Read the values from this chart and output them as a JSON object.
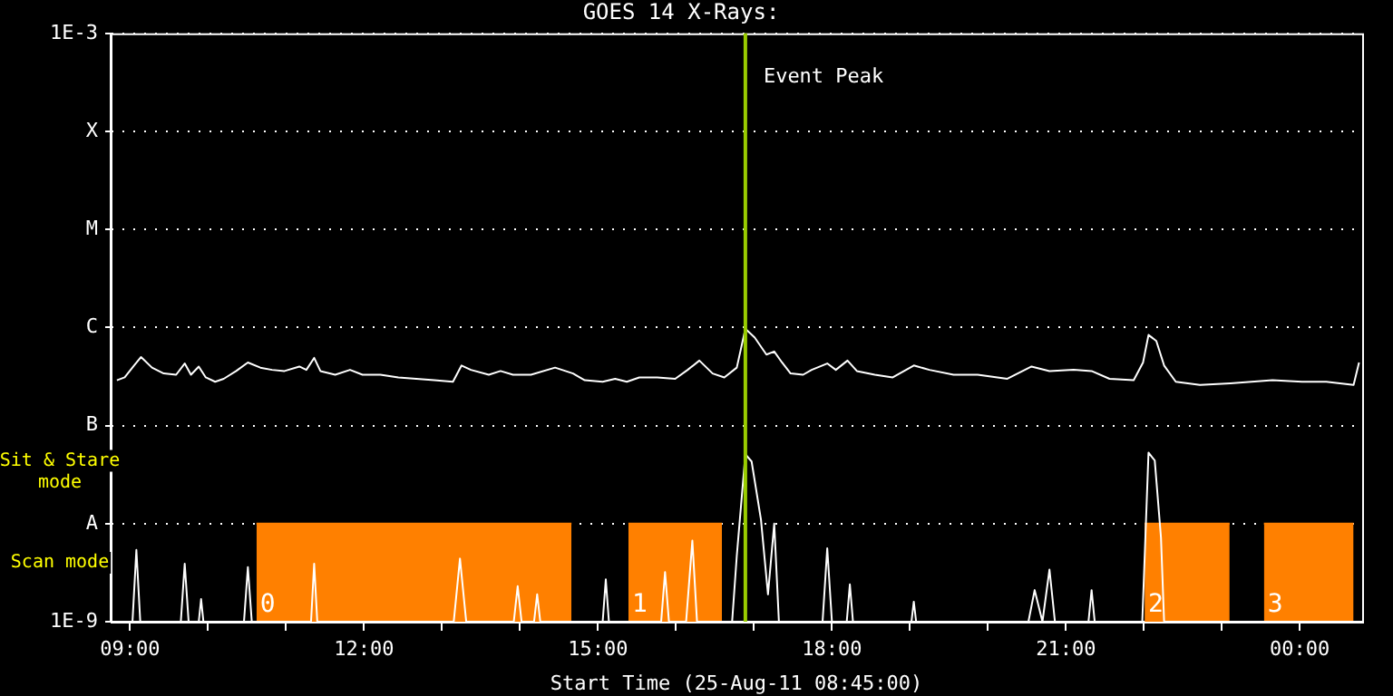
{
  "chart_data": {
    "type": "line",
    "title": "GOES 14 X-Rays:",
    "xlabel": "Start Time (25-Aug-11 08:45:00)",
    "log": "y",
    "grid": "y",
    "legend": false,
    "marker": "none",
    "xlim": [
      8.75,
      24.8
    ],
    "xticks": [
      {
        "value": 9,
        "label": "09:00"
      },
      {
        "value": 10,
        "label": null
      },
      {
        "value": 11,
        "label": null
      },
      {
        "value": 12,
        "label": "12:00"
      },
      {
        "value": 13,
        "label": null
      },
      {
        "value": 14,
        "label": null
      },
      {
        "value": 15,
        "label": "15:00"
      },
      {
        "value": 16,
        "label": null
      },
      {
        "value": 17,
        "label": null
      },
      {
        "value": 18,
        "label": "18:00"
      },
      {
        "value": 19,
        "label": null
      },
      {
        "value": 20,
        "label": null
      },
      {
        "value": 21,
        "label": "21:00"
      },
      {
        "value": 22,
        "label": null
      },
      {
        "value": 23,
        "label": null
      },
      {
        "value": 24,
        "label": "00:00"
      }
    ],
    "ylim": [
      1e-09,
      0.001
    ],
    "yticks": [
      {
        "value": 1e-09,
        "label": "1E-9"
      },
      {
        "value": 1e-08,
        "label": "A"
      },
      {
        "value": 1e-07,
        "label": "B"
      },
      {
        "value": 1e-06,
        "label": "C"
      },
      {
        "value": 1e-05,
        "label": "M"
      },
      {
        "value": 0.0001,
        "label": "X"
      },
      {
        "value": 0.001,
        "label": "1E-3"
      }
    ],
    "series": [
      {
        "type": "area",
        "color": "#ff8000",
        "x": [
          10.62,
          14.66,
          15.0,
          15.39,
          16.59,
          19.0,
          22.01,
          23.1,
          23.3,
          23.54,
          24.69
        ],
        "values": [
          1e-08,
          1e-08,
          null,
          1e-08,
          1e-08,
          null,
          1e-08,
          1e-08,
          null,
          1e-08,
          1e-08
        ]
      },
      {
        "color": "#ffffff",
        "x": [
          8.83,
          8.93,
          9.05,
          9.14,
          9.28,
          9.43,
          9.59,
          9.7,
          9.78,
          9.88,
          9.97,
          10.09,
          10.2,
          10.36,
          10.51,
          10.67,
          10.82,
          10.98,
          11.17,
          11.26,
          11.36,
          11.44,
          11.63,
          11.82,
          11.98,
          12.21,
          12.44,
          12.67,
          12.9,
          13.14,
          13.25,
          13.37,
          13.6,
          13.75,
          13.91,
          14.14,
          14.45,
          14.68,
          14.83,
          15.06,
          15.22,
          15.37,
          15.53,
          15.76,
          15.99,
          16.15,
          16.3,
          16.47,
          16.62,
          16.78,
          16.89,
          17.01,
          17.16,
          17.26,
          17.36,
          17.47,
          17.63,
          17.74,
          17.94,
          18.05,
          18.2,
          18.32,
          18.55,
          18.78,
          19.05,
          19.25,
          19.56,
          19.87,
          20.25,
          20.56,
          20.79,
          21.1,
          21.33,
          21.56,
          21.87,
          21.99,
          22.06,
          22.16,
          22.26,
          22.41,
          22.72,
          23.11,
          23.65,
          24.03,
          24.34,
          24.69,
          24.76
        ],
        "values": [
          2.9e-07,
          3.1e-07,
          4.1e-07,
          5e-07,
          3.9e-07,
          3.4e-07,
          3.3e-07,
          4.3e-07,
          3.3e-07,
          4e-07,
          3.1e-07,
          2.8e-07,
          3e-07,
          3.6e-07,
          4.4e-07,
          3.9e-07,
          3.7e-07,
          3.6e-07,
          4e-07,
          3.7e-07,
          4.9e-07,
          3.6e-07,
          3.3e-07,
          3.7e-07,
          3.3e-07,
          3.3e-07,
          3.1e-07,
          3e-07,
          2.9e-07,
          2.8e-07,
          4.1e-07,
          3.7e-07,
          3.3e-07,
          3.6e-07,
          3.3e-07,
          3.3e-07,
          3.9e-07,
          3.4e-07,
          2.9e-07,
          2.8e-07,
          3e-07,
          2.8e-07,
          3.1e-07,
          3.1e-07,
          3e-07,
          3.7e-07,
          4.6e-07,
          3.4e-07,
          3.1e-07,
          3.9e-07,
          9.7e-07,
          7.9e-07,
          5.3e-07,
          5.7e-07,
          4.4e-07,
          3.4e-07,
          3.3e-07,
          3.7e-07,
          4.3e-07,
          3.7e-07,
          4.6e-07,
          3.6e-07,
          3.3e-07,
          3.1e-07,
          4.1e-07,
          3.7e-07,
          3.3e-07,
          3.3e-07,
          3e-07,
          4e-07,
          3.6e-07,
          3.7e-07,
          3.6e-07,
          3e-07,
          2.9e-07,
          4.4e-07,
          8.4e-07,
          7.3e-07,
          4.1e-07,
          2.8e-07,
          2.6e-07,
          2.7e-07,
          2.9e-07,
          2.8e-07,
          2.8e-07,
          2.6e-07,
          4.4e-07
        ]
      },
      {
        "color": "#ffffff",
        "x": [
          8.83,
          9.03,
          9.08,
          9.13,
          9.65,
          9.7,
          9.75,
          9.88,
          9.91,
          9.94,
          10.46,
          10.51,
          10.56,
          11.32,
          11.36,
          11.4,
          13.15,
          13.23,
          13.31,
          13.92,
          13.97,
          14.02,
          14.18,
          14.22,
          14.26,
          15.06,
          15.1,
          15.14,
          15.81,
          15.86,
          15.91,
          16.13,
          16.21,
          16.27,
          16.72,
          16.78,
          16.89,
          16.97,
          17.09,
          17.18,
          17.26,
          17.32,
          17.88,
          17.94,
          18.0,
          18.19,
          18.23,
          18.27,
          19.02,
          19.05,
          19.08,
          20.52,
          20.6,
          20.7,
          20.79,
          20.86,
          21.29,
          21.33,
          21.37,
          21.98,
          22.06,
          22.14,
          22.22,
          22.26,
          24.76
        ],
        "values": [
          1e-09,
          1e-09,
          5.4e-09,
          1e-09,
          1e-09,
          3.9e-09,
          1e-09,
          1e-09,
          1.7e-09,
          1e-09,
          1e-09,
          3.6e-09,
          1e-09,
          1e-09,
          3.9e-09,
          1e-09,
          1e-09,
          4.4e-09,
          1e-09,
          1e-09,
          2.3e-09,
          1e-09,
          1e-09,
          1.9e-09,
          1e-09,
          1e-09,
          2.7e-09,
          1e-09,
          1e-09,
          3.2e-09,
          1e-09,
          1e-09,
          6.7e-09,
          1e-09,
          1e-09,
          4.7e-09,
          5.1e-08,
          4.3e-08,
          1.1e-08,
          1.9e-09,
          1e-08,
          1e-09,
          1e-09,
          5.6e-09,
          1e-09,
          1e-09,
          2.4e-09,
          1e-09,
          1e-09,
          1.6e-09,
          1e-09,
          1e-09,
          2.1e-09,
          1e-09,
          3.4e-09,
          1e-09,
          1e-09,
          2.1e-09,
          1e-09,
          1e-09,
          5.3e-08,
          4.4e-08,
          7.2e-09,
          1e-09,
          1e-09
        ]
      }
    ],
    "ref_lines": [
      {
        "axis": "x",
        "value": 16.89,
        "label": "Event Peak",
        "color": "#99cc00"
      }
    ],
    "annotations": [
      "Sit & Stare mode",
      "Scan mode",
      "0",
      "1",
      "2",
      "3"
    ]
  }
}
